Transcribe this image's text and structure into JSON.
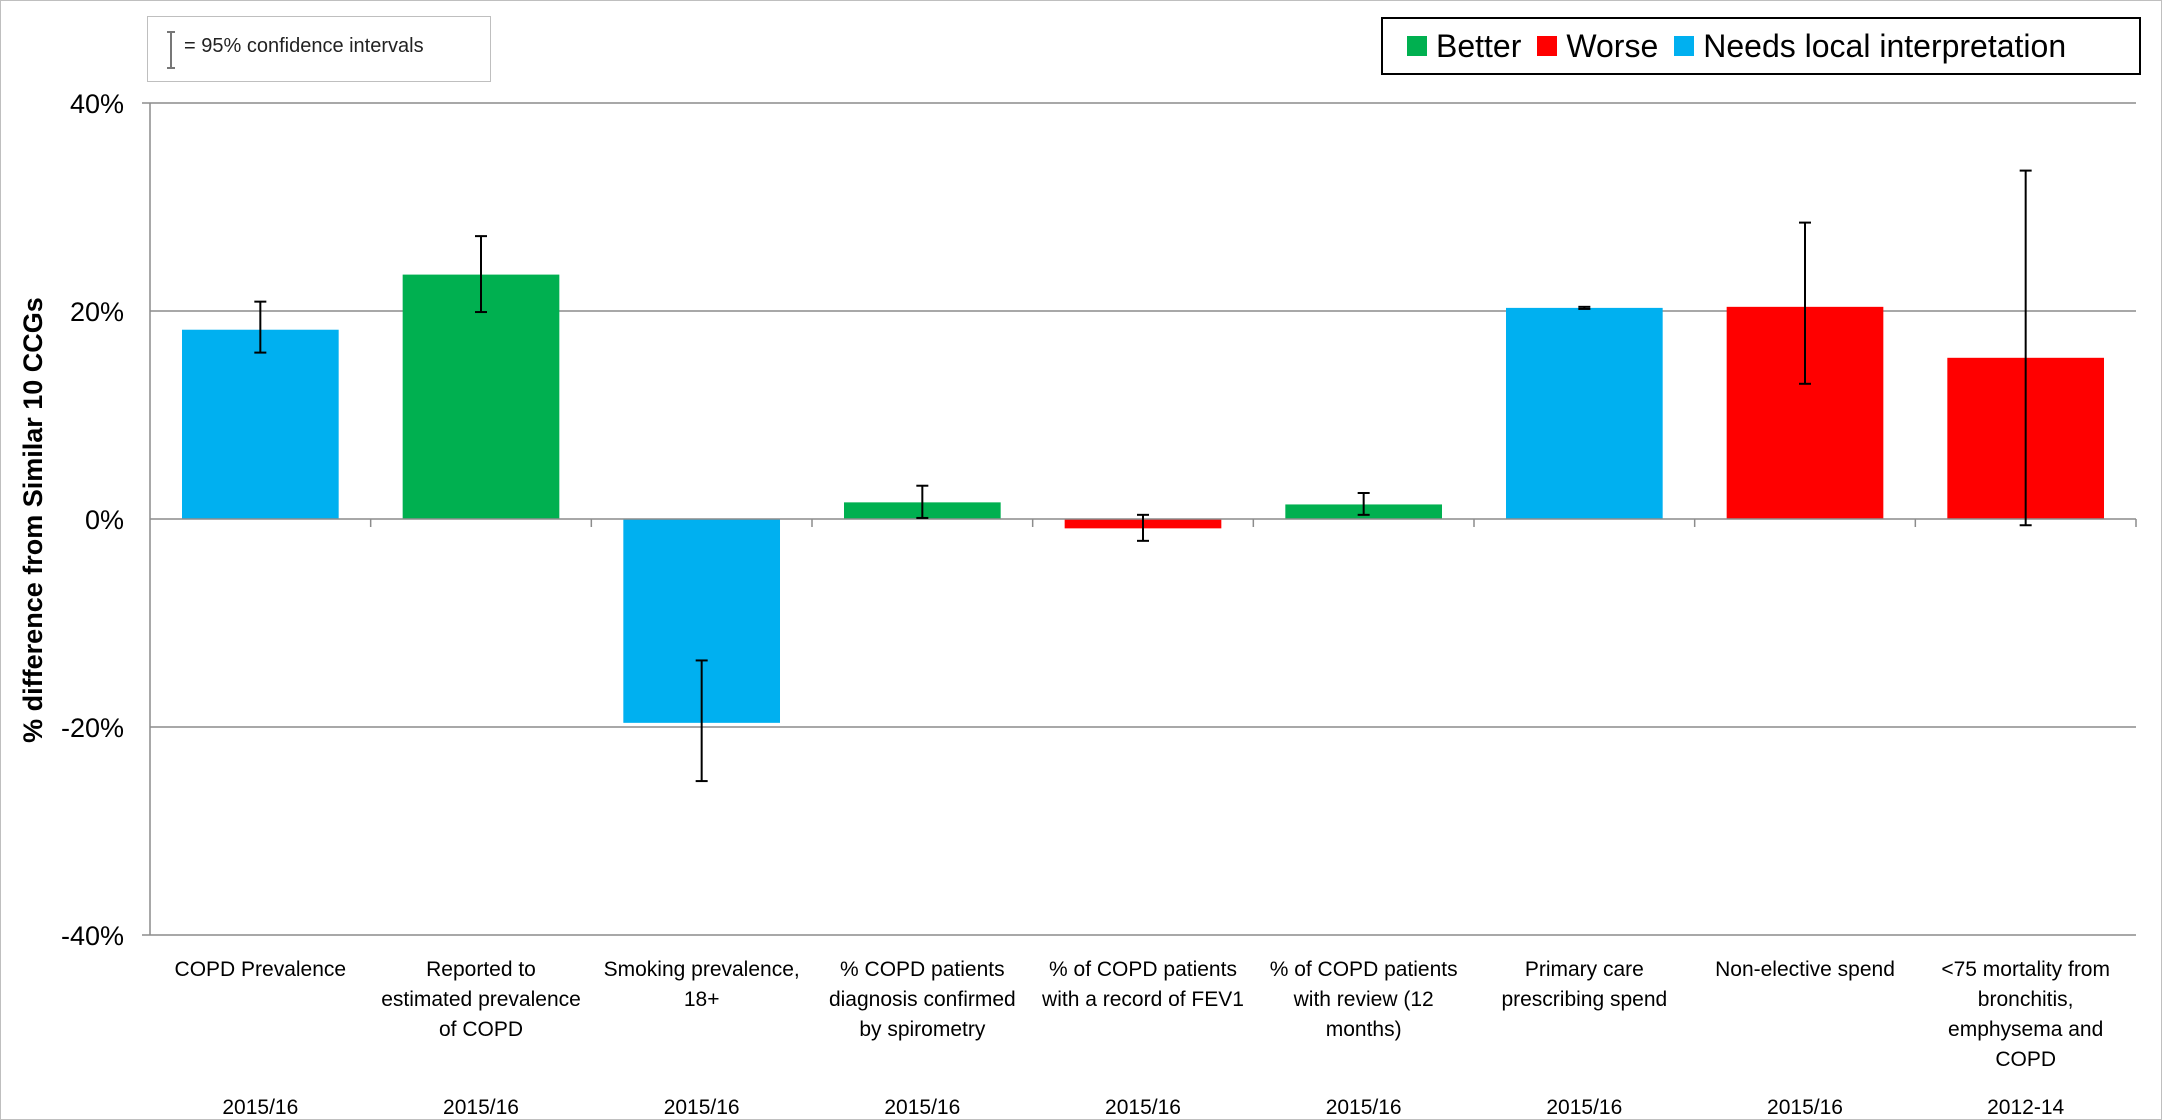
{
  "chart_data": {
    "type": "bar",
    "title": "",
    "xlabel": "",
    "ylabel": "% difference from Similar 10 CCGs",
    "ylim": [
      -40,
      40
    ],
    "yticks": [
      40,
      20,
      0,
      -20,
      -40
    ],
    "ytick_labels": [
      "40%",
      "20%",
      "0%",
      "-20%",
      "-40%"
    ],
    "grid": true,
    "legend_position": "top-right",
    "ci_note": "= 95% confidence intervals",
    "legend": [
      {
        "key": "better",
        "label": "Better",
        "color": "#00B050"
      },
      {
        "key": "worse",
        "label": "Worse",
        "color": "#FF0000"
      },
      {
        "key": "local",
        "label": "Needs local interpretation",
        "color": "#00B0F0"
      }
    ],
    "categories": [
      {
        "label": [
          "COPD Prevalence"
        ],
        "period": "2015/16",
        "value": 18.2,
        "ci": [
          16.0,
          20.9
        ],
        "status": "local"
      },
      {
        "label": [
          "Reported to",
          "estimated prevalence",
          "of COPD"
        ],
        "period": "2015/16",
        "value": 23.5,
        "ci": [
          19.9,
          27.2
        ],
        "status": "better"
      },
      {
        "label": [
          "Smoking prevalence,",
          "18+"
        ],
        "period": "2015/16",
        "value": -19.6,
        "ci": [
          -25.2,
          -13.6
        ],
        "status": "local"
      },
      {
        "label": [
          "% COPD patients",
          "diagnosis confirmed",
          "by spirometry"
        ],
        "period": "2015/16",
        "value": 1.6,
        "ci": [
          0.1,
          3.2
        ],
        "status": "better"
      },
      {
        "label": [
          "% of COPD patients",
          "with a record of FEV1"
        ],
        "period": "2015/16",
        "value": -0.9,
        "ci": [
          -2.1,
          0.4
        ],
        "status": "worse"
      },
      {
        "label": [
          "% of COPD patients",
          "with review (12",
          "months)"
        ],
        "period": "2015/16",
        "value": 1.4,
        "ci": [
          0.4,
          2.5
        ],
        "status": "better"
      },
      {
        "label": [
          "Primary care",
          "prescribing spend"
        ],
        "period": "2015/16",
        "value": 20.3,
        "ci": [
          20.2,
          20.4
        ],
        "status": "local"
      },
      {
        "label": [
          "Non-elective spend"
        ],
        "period": "2015/16",
        "value": 20.4,
        "ci": [
          13.0,
          28.5
        ],
        "status": "worse"
      },
      {
        "label": [
          "<75 mortality from",
          "bronchitis,",
          "emphysema and",
          "COPD"
        ],
        "period": "2012-14",
        "value": 15.5,
        "ci": [
          -0.6,
          33.5
        ],
        "status": "worse"
      }
    ]
  }
}
